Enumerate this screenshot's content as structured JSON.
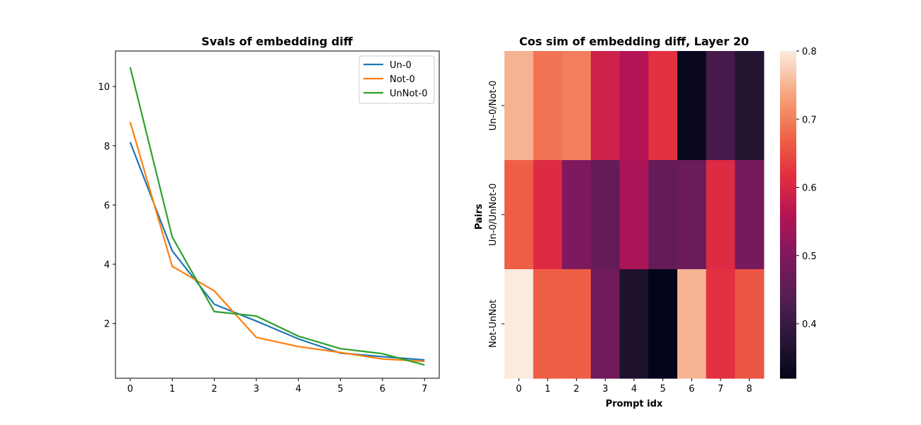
{
  "chart_data": [
    {
      "type": "line",
      "title": "Svals of embedding diff",
      "xlabel": "",
      "ylabel": "",
      "x": [
        0,
        1,
        2,
        3,
        4,
        5,
        6,
        7
      ],
      "xlim": [
        -0.35,
        7.35
      ],
      "ylim": [
        0.15,
        11.2
      ],
      "xticks": [
        0,
        1,
        2,
        3,
        4,
        5,
        6,
        7
      ],
      "yticks": [
        2,
        4,
        6,
        8,
        10
      ],
      "grid": false,
      "legend": "top-right",
      "series": [
        {
          "name": "Un-0",
          "color": "#1f77b4",
          "values": [
            8.12,
            4.45,
            2.65,
            2.08,
            1.48,
            1.0,
            0.88,
            0.77
          ]
        },
        {
          "name": "Not-0",
          "color": "#ff7f0e",
          "values": [
            8.8,
            3.93,
            3.1,
            1.53,
            1.22,
            1.02,
            0.8,
            0.72
          ]
        },
        {
          "name": "UnNot-0",
          "color": "#2ca02c",
          "values": [
            10.65,
            4.92,
            2.4,
            2.25,
            1.57,
            1.15,
            0.98,
            0.6
          ]
        }
      ]
    },
    {
      "type": "heatmap",
      "title": "Cos sim of embedding diff, Layer 20",
      "xlabel": "Prompt idx",
      "ylabel": "Pairs",
      "x": [
        0,
        1,
        2,
        3,
        4,
        5,
        6,
        7,
        8
      ],
      "rows": [
        "Un-0/Not-0",
        "Un-0/UnNot-0",
        "Not-UnNot"
      ],
      "values": [
        [
          0.75,
          0.69,
          0.7,
          0.59,
          0.56,
          0.62,
          0.33,
          0.42,
          0.37
        ],
        [
          0.67,
          0.61,
          0.5,
          0.46,
          0.55,
          0.46,
          0.47,
          0.61,
          0.49
        ],
        [
          0.8,
          0.67,
          0.67,
          0.48,
          0.36,
          0.32,
          0.75,
          0.62,
          0.66
        ]
      ],
      "colorbar": {
        "vmin": 0.32,
        "vmax": 0.8,
        "ticks": [
          0.4,
          0.5,
          0.6,
          0.7,
          0.8
        ],
        "colormap": "rocket"
      }
    }
  ]
}
